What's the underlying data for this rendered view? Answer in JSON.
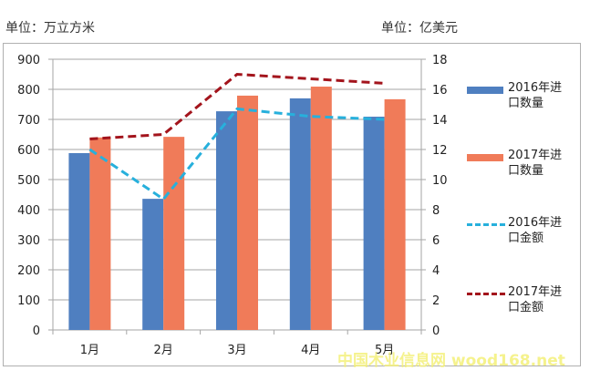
{
  "units": {
    "left": "单位：万立方米",
    "right": "单位：亿美元"
  },
  "colors": {
    "bar_2016": "#4f7fc0",
    "bar_2017": "#f07b59",
    "line_2016": "#27b0dc",
    "line_2017": "#a3141c",
    "grid": "#a6a6a6",
    "watermark": "#f4f07a"
  },
  "legend": [
    {
      "label": "2016年进口数量",
      "line1": "2016年进",
      "line2": "口数量",
      "type": "bar",
      "color": "#4f7fc0"
    },
    {
      "label": "2017年进口数量",
      "line1": "2017年进",
      "line2": "口数量",
      "type": "bar",
      "color": "#f07b59"
    },
    {
      "label": "2016年进口金额",
      "line1": "2016年进",
      "line2": "口金额",
      "type": "dashed-line",
      "color": "#27b0dc"
    },
    {
      "label": "2017年进口金额",
      "line1": "2017年进",
      "line2": "口金额",
      "type": "dashed-line",
      "color": "#a3141c"
    }
  ],
  "watermark": "中国木业信息网 wood168.net",
  "chart_data": {
    "type": "bar+line",
    "title": "",
    "categories": [
      "1月",
      "2月",
      "3月",
      "4月",
      "5月"
    ],
    "series": [
      {
        "name": "2016年进口数量",
        "type": "bar",
        "axis": "left",
        "values": [
          588,
          436,
          727,
          770,
          709
        ]
      },
      {
        "name": "2017年进口数量",
        "type": "bar",
        "axis": "left",
        "values": [
          640,
          642,
          779,
          809,
          767
        ]
      },
      {
        "name": "2016年进口金额",
        "type": "line",
        "style": "dashed",
        "axis": "right",
        "values": [
          12.0,
          8.7,
          14.7,
          14.2,
          14.0
        ]
      },
      {
        "name": "2017年进口金额",
        "type": "line",
        "style": "dashed",
        "axis": "right",
        "values": [
          12.7,
          13.0,
          17.0,
          16.7,
          16.4
        ]
      }
    ],
    "left_axis": {
      "label": "单位：万立方米",
      "min": 0,
      "max": 900,
      "ticks": [
        0,
        100,
        200,
        300,
        400,
        500,
        600,
        700,
        800,
        900
      ]
    },
    "right_axis": {
      "label": "单位：亿美元",
      "min": 0,
      "max": 18,
      "ticks": [
        0,
        2,
        4,
        6,
        8,
        10,
        12,
        14,
        16,
        18
      ]
    },
    "grid": true,
    "legend_position": "right"
  }
}
